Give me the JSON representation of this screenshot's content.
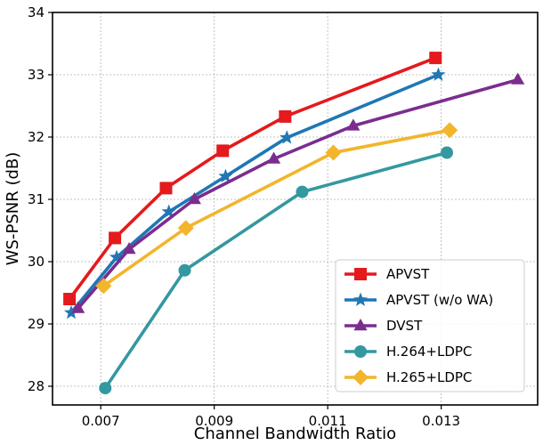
{
  "chart_data": {
    "type": "line",
    "xlabel": "Channel Bandwidth Ratio",
    "ylabel": "WS-PSNR (dB)",
    "xlim": [
      0.00615,
      0.0147
    ],
    "ylim": [
      27.7,
      34
    ],
    "xticks": [
      "0.007",
      "0.009",
      "0.011",
      "0.013"
    ],
    "xtick_values": [
      0.007,
      0.009,
      0.011,
      0.013
    ],
    "yticks": [
      "28",
      "29",
      "30",
      "31",
      "32",
      "33",
      "34"
    ],
    "ytick_values": [
      28,
      29,
      30,
      31,
      32,
      33,
      34
    ],
    "grid": true,
    "legend_position": "lower-right",
    "series": [
      {
        "name": "APVST",
        "color": "#e41a1c",
        "marker": "square",
        "x": [
          0.00645,
          0.00725,
          0.00815,
          0.00915,
          0.01025,
          0.0129
        ],
        "y": [
          29.4,
          30.38,
          31.18,
          31.78,
          32.33,
          33.27
        ]
      },
      {
        "name": "APVST (w/o WA)",
        "color": "#1f77b4",
        "marker": "star",
        "x": [
          0.00648,
          0.00728,
          0.0082,
          0.0092,
          0.01028,
          0.01295
        ],
        "y": [
          29.18,
          30.07,
          30.8,
          31.37,
          31.99,
          33.0
        ]
      },
      {
        "name": "DVST",
        "color": "#7b2d8e",
        "marker": "triangle",
        "x": [
          0.0066,
          0.0075,
          0.00865,
          0.01005,
          0.01145,
          0.01435
        ],
        "y": [
          29.25,
          30.2,
          31.0,
          31.65,
          32.18,
          32.92
        ]
      },
      {
        "name": "H.264+LDPC",
        "color": "#3498a0",
        "marker": "circle",
        "x": [
          0.00708,
          0.00848,
          0.01055,
          0.0131
        ],
        "y": [
          27.97,
          29.86,
          31.12,
          31.75
        ]
      },
      {
        "name": "H.265+LDPC",
        "color": "#f2b52b",
        "marker": "diamond",
        "x": [
          0.00705,
          0.0085,
          0.0111,
          0.01315
        ],
        "y": [
          29.61,
          30.54,
          31.75,
          32.11
        ]
      }
    ]
  }
}
